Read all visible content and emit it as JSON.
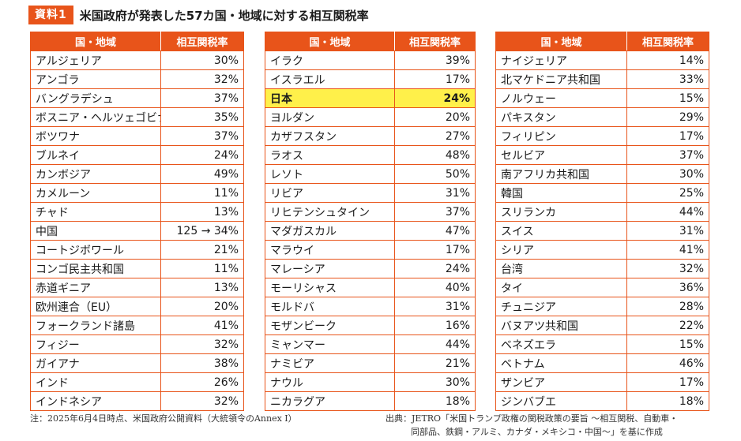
{
  "header": {
    "badge": "資料1",
    "title": "米国政府が発表した57カ国・地域に対する相互関税率"
  },
  "columns": {
    "country": "国・地域",
    "rate": "相互関税率"
  },
  "tables": [
    {
      "rows": [
        {
          "name": "アルジェリア",
          "rate": "30%"
        },
        {
          "name": "アンゴラ",
          "rate": "32%"
        },
        {
          "name": "バングラデシュ",
          "rate": "37%"
        },
        {
          "name": "ボスニア・ヘルツェゴビナ",
          "rate": "35%"
        },
        {
          "name": "ボツワナ",
          "rate": "37%"
        },
        {
          "name": "ブルネイ",
          "rate": "24%"
        },
        {
          "name": "カンボジア",
          "rate": "49%"
        },
        {
          "name": "カメルーン",
          "rate": "11%"
        },
        {
          "name": "チャド",
          "rate": "13%"
        },
        {
          "name": "中国",
          "rate": "125 → 34%"
        },
        {
          "name": "コートジボワール",
          "rate": "21%"
        },
        {
          "name": "コンゴ民主共和国",
          "rate": "11%"
        },
        {
          "name": "赤道ギニア",
          "rate": "13%"
        },
        {
          "name": "欧州連合（EU）",
          "rate": "20%"
        },
        {
          "name": "フォークランド諸島",
          "rate": "41%"
        },
        {
          "name": "フィジー",
          "rate": "32%"
        },
        {
          "name": "ガイアナ",
          "rate": "38%"
        },
        {
          "name": "インド",
          "rate": "26%"
        },
        {
          "name": "インドネシア",
          "rate": "32%"
        }
      ]
    },
    {
      "rows": [
        {
          "name": "イラク",
          "rate": "39%"
        },
        {
          "name": "イスラエル",
          "rate": "17%"
        },
        {
          "name": "日本",
          "rate": "24%",
          "highlight": true
        },
        {
          "name": "ヨルダン",
          "rate": "20%"
        },
        {
          "name": "カザフスタン",
          "rate": "27%"
        },
        {
          "name": "ラオス",
          "rate": "48%"
        },
        {
          "name": "レソト",
          "rate": "50%"
        },
        {
          "name": "リビア",
          "rate": "31%"
        },
        {
          "name": "リヒテンシュタイン",
          "rate": "37%"
        },
        {
          "name": "マダガスカル",
          "rate": "47%"
        },
        {
          "name": "マラウイ",
          "rate": "17%"
        },
        {
          "name": "マレーシア",
          "rate": "24%"
        },
        {
          "name": "モーリシャス",
          "rate": "40%"
        },
        {
          "name": "モルドバ",
          "rate": "31%"
        },
        {
          "name": "モザンビーク",
          "rate": "16%"
        },
        {
          "name": "ミャンマー",
          "rate": "44%"
        },
        {
          "name": "ナミビア",
          "rate": "21%"
        },
        {
          "name": "ナウル",
          "rate": "30%"
        },
        {
          "name": "ニカラグア",
          "rate": "18%"
        }
      ]
    },
    {
      "rows": [
        {
          "name": "ナイジェリア",
          "rate": "14%"
        },
        {
          "name": "北マケドニア共和国",
          "rate": "33%"
        },
        {
          "name": "ノルウェー",
          "rate": "15%"
        },
        {
          "name": "パキスタン",
          "rate": "29%"
        },
        {
          "name": "フィリピン",
          "rate": "17%"
        },
        {
          "name": "セルビア",
          "rate": "37%"
        },
        {
          "name": "南アフリカ共和国",
          "rate": "30%"
        },
        {
          "name": "韓国",
          "rate": "25%"
        },
        {
          "name": "スリランカ",
          "rate": "44%"
        },
        {
          "name": "スイス",
          "rate": "31%"
        },
        {
          "name": "シリア",
          "rate": "41%"
        },
        {
          "name": "台湾",
          "rate": "32%"
        },
        {
          "name": "タイ",
          "rate": "36%"
        },
        {
          "name": "チュニジア",
          "rate": "28%"
        },
        {
          "name": "バヌアツ共和国",
          "rate": "22%"
        },
        {
          "name": "ベネズエラ",
          "rate": "15%"
        },
        {
          "name": "ベトナム",
          "rate": "46%"
        },
        {
          "name": "ザンビア",
          "rate": "17%"
        },
        {
          "name": "ジンバブエ",
          "rate": "18%"
        }
      ]
    }
  ],
  "footer": {
    "note": "注：2025年6月4日時点、米国政府公開資料（大統領令のAnnex I）",
    "source_line1": "出典：JETRO「米国トランプ政権の関税政策の要旨 ～相互関税、自動車・",
    "source_line2": "同部品、鉄鋼・アルミ、カナダ・メキシコ・中国～」を基に作成"
  },
  "colors": {
    "accent": "#e8541a",
    "highlight": "#fff04a"
  }
}
